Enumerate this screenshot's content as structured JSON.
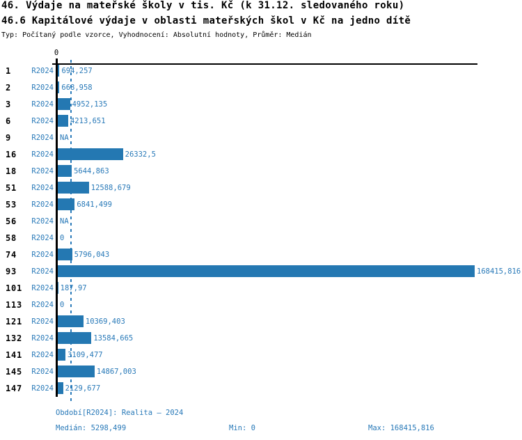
{
  "title": {
    "line1": "46. Výdaje na mateřské školy v tis. Kč (k 31.12. sledovaného roku)",
    "line2": "46.6 Kapitálové výdaje v oblasti mateřských škol v Kč na jedno dítě",
    "subtitle": "Typ: Počítaný podle vzorce, Vyhodnocení: Absolutní hodnoty, Průměr: Medián"
  },
  "chart_data": {
    "type": "bar",
    "orientation": "horizontal",
    "axis": {
      "zero_label": "0",
      "xlim": [
        0,
        168415.816
      ]
    },
    "median": 5298.499,
    "min": 0,
    "max": 168415.816,
    "period_label": "R2024",
    "categories": [
      "1",
      "2",
      "3",
      "6",
      "9",
      "16",
      "18",
      "51",
      "53",
      "56",
      "58",
      "74",
      "93",
      "101",
      "113",
      "121",
      "132",
      "141",
      "145",
      "147"
    ],
    "values": [
      694.257,
      668.958,
      4952.135,
      4213.651,
      null,
      26332.5,
      5644.863,
      12588.679,
      6841.499,
      null,
      0,
      5796.043,
      168415.816,
      187.97,
      0,
      10369.403,
      13584.665,
      3109.477,
      14867.003,
      2129.677
    ],
    "rows": [
      {
        "id": "1",
        "period": "R2024",
        "value": 694.257,
        "label": "694,257"
      },
      {
        "id": "2",
        "period": "R2024",
        "value": 668.958,
        "label": "668,958"
      },
      {
        "id": "3",
        "period": "R2024",
        "value": 4952.135,
        "label": "4952,135"
      },
      {
        "id": "6",
        "period": "R2024",
        "value": 4213.651,
        "label": "4213,651"
      },
      {
        "id": "9",
        "period": "R2024",
        "value": null,
        "label": "NA"
      },
      {
        "id": "16",
        "period": "R2024",
        "value": 26332.5,
        "label": "26332,5"
      },
      {
        "id": "18",
        "period": "R2024",
        "value": 5644.863,
        "label": "5644,863"
      },
      {
        "id": "51",
        "period": "R2024",
        "value": 12588.679,
        "label": "12588,679"
      },
      {
        "id": "53",
        "period": "R2024",
        "value": 6841.499,
        "label": "6841,499"
      },
      {
        "id": "56",
        "period": "R2024",
        "value": null,
        "label": "NA"
      },
      {
        "id": "58",
        "period": "R2024",
        "value": 0,
        "label": "0"
      },
      {
        "id": "74",
        "period": "R2024",
        "value": 5796.043,
        "label": "5796,043"
      },
      {
        "id": "93",
        "period": "R2024",
        "value": 168415.816,
        "label": "168415,816"
      },
      {
        "id": "101",
        "period": "R2024",
        "value": 187.97,
        "label": "187,97"
      },
      {
        "id": "113",
        "period": "R2024",
        "value": 0,
        "label": "0"
      },
      {
        "id": "121",
        "period": "R2024",
        "value": 10369.403,
        "label": "10369,403"
      },
      {
        "id": "132",
        "period": "R2024",
        "value": 13584.665,
        "label": "13584,665"
      },
      {
        "id": "141",
        "period": "R2024",
        "value": 3109.477,
        "label": "3109,477"
      },
      {
        "id": "145",
        "period": "R2024",
        "value": 14867.003,
        "label": "14867,003"
      },
      {
        "id": "147",
        "period": "R2024",
        "value": 2129.677,
        "label": "2129,677"
      }
    ],
    "colors": {
      "bar": "#2478b2",
      "accent_text": "#2879b8"
    },
    "legend": null,
    "grid": false
  },
  "footer": {
    "period_line": "Období[R2024]: Realita – 2024",
    "median_label": "Medián: 5298,499",
    "min_label": "Min: 0",
    "max_label": "Max: 168415,816"
  }
}
